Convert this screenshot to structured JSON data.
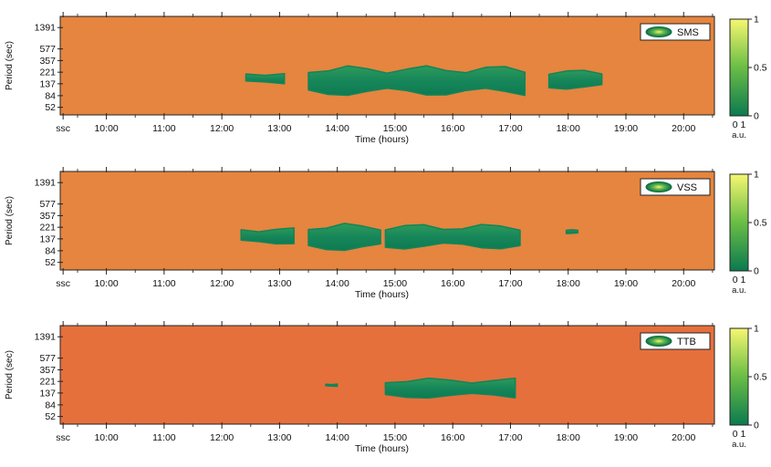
{
  "chart_data": [
    {
      "type": "heatmap",
      "station": "SMS",
      "xlabel": "Time (hours)",
      "ylabel": "Period (sec)",
      "background_color": "#e5853f",
      "x_ticks": [
        "ssc",
        "10:00",
        "11:00",
        "12:00",
        "13:00",
        "14:00",
        "15:00",
        "16:00",
        "17:00",
        "18:00",
        "19:00",
        "20:00"
      ],
      "y_ticks": [
        "1391",
        "577",
        "357",
        "221",
        "137",
        "84",
        "52"
      ],
      "colorbar": {
        "ticks": [
          "1",
          "0.5",
          "0"
        ],
        "bottom_label": "0 1",
        "unit": "a.u."
      },
      "blobs": [
        {
          "t_start": "12:25",
          "t_end": "13:05",
          "period_low": 137,
          "period_high": 221
        },
        {
          "t_start": "13:30",
          "t_end": "17:15",
          "period_low": 84,
          "period_high": 300
        },
        {
          "t_start": "17:40",
          "t_end": "18:35",
          "period_low": 110,
          "period_high": 250
        }
      ]
    },
    {
      "type": "heatmap",
      "station": "VSS",
      "xlabel": "Time (hours)",
      "ylabel": "Period (sec)",
      "background_color": "#e5853f",
      "x_ticks": [
        "ssc",
        "10:00",
        "11:00",
        "12:00",
        "13:00",
        "14:00",
        "15:00",
        "16:00",
        "17:00",
        "18:00",
        "19:00",
        "20:00"
      ],
      "y_ticks": [
        "1391",
        "577",
        "357",
        "221",
        "137",
        "84",
        "52"
      ],
      "colorbar": {
        "ticks": [
          "1",
          "0.5",
          "0"
        ],
        "bottom_label": "0 1",
        "unit": "a.u."
      },
      "blobs": [
        {
          "t_start": "12:20",
          "t_end": "13:15",
          "period_low": 110,
          "period_high": 221
        },
        {
          "t_start": "13:30",
          "t_end": "14:45",
          "period_low": 84,
          "period_high": 270
        },
        {
          "t_start": "14:50",
          "t_end": "17:10",
          "period_low": 90,
          "period_high": 260
        },
        {
          "t_start": "17:58",
          "t_end": "18:10",
          "period_low": 170,
          "period_high": 200
        }
      ]
    },
    {
      "type": "heatmap",
      "station": "TTB",
      "xlabel": "Time (hours)",
      "ylabel": "Period (sec)",
      "background_color": "#e5703c",
      "x_ticks": [
        "ssc",
        "10:00",
        "11:00",
        "12:00",
        "13:00",
        "14:00",
        "15:00",
        "16:00",
        "17:00",
        "18:00",
        "19:00",
        "20:00"
      ],
      "y_ticks": [
        "1391",
        "577",
        "357",
        "221",
        "137",
        "84",
        "52"
      ],
      "colorbar": {
        "ticks": [
          "1",
          "0.5",
          "0"
        ],
        "bottom_label": "0 1",
        "unit": "a.u."
      },
      "blobs": [
        {
          "t_start": "13:48",
          "t_end": "14:00",
          "period_low": 180,
          "period_high": 200
        },
        {
          "t_start": "14:50",
          "t_end": "17:05",
          "period_low": 110,
          "period_high": 260
        }
      ]
    }
  ]
}
